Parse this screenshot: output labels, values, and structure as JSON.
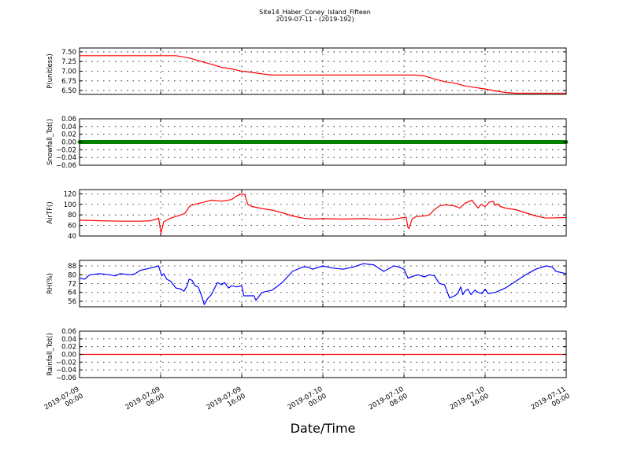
{
  "chart_data": {
    "type": "line",
    "title": "Site14_Haber_Coney_Island_Fifteen",
    "subtitle": "2019-07-11 - (2019-192)",
    "xlabel": "Date/Time",
    "x_ticks": [
      [
        "2019-07-09",
        "00:00"
      ],
      [
        "2019-07-09",
        "08:00"
      ],
      [
        "2019-07-09",
        "16:00"
      ],
      [
        "2019-07-10",
        "00:00"
      ],
      [
        "2019-07-10",
        "08:00"
      ],
      [
        "2019-07-10",
        "16:00"
      ],
      [
        "2019-07-11",
        "00:00"
      ]
    ],
    "x_range_hours": [
      0,
      48
    ],
    "grid": true,
    "panels": [
      {
        "ylabel": "P(unitless)",
        "ylim": [
          6.4,
          7.6
        ],
        "yticks": [
          6.5,
          6.75,
          7.0,
          7.25,
          7.5
        ],
        "ytick_labels": [
          "6.50",
          "6.75",
          "7.00",
          "7.25",
          "7.50"
        ],
        "color": "#ff0000",
        "style": "line",
        "points": [
          [
            0,
            7.4
          ],
          [
            9.5,
            7.4
          ],
          [
            10,
            7.38
          ],
          [
            11,
            7.33
          ],
          [
            12,
            7.25
          ],
          [
            13,
            7.18
          ],
          [
            14,
            7.1
          ],
          [
            15,
            7.06
          ],
          [
            16,
            7.0
          ],
          [
            17,
            6.97
          ],
          [
            18,
            6.93
          ],
          [
            19,
            6.9
          ],
          [
            24,
            6.9
          ],
          [
            33,
            6.9
          ],
          [
            34,
            6.88
          ],
          [
            35,
            6.8
          ],
          [
            36,
            6.73
          ],
          [
            37,
            6.69
          ],
          [
            38,
            6.62
          ],
          [
            39,
            6.58
          ],
          [
            40,
            6.54
          ],
          [
            41,
            6.49
          ],
          [
            42,
            6.45
          ],
          [
            43,
            6.43
          ],
          [
            48,
            6.43
          ]
        ]
      },
      {
        "ylabel": "Snowfall_Tot()",
        "ylim": [
          -0.06,
          0.06
        ],
        "yticks": [
          -0.06,
          -0.04,
          -0.02,
          0.0,
          0.02,
          0.04,
          0.06
        ],
        "ytick_labels": [
          "−0.06",
          "−0.04",
          "−0.02",
          "0.00",
          "0.02",
          "0.04",
          "0.06"
        ],
        "color": "#007f00",
        "style": "markers",
        "points": [
          [
            0,
            0
          ],
          [
            48,
            0
          ]
        ]
      },
      {
        "ylabel": "AirTF()",
        "ylim": [
          40,
          128
        ],
        "yticks": [
          40,
          60,
          80,
          100,
          120
        ],
        "ytick_labels": [
          "40",
          "60",
          "80",
          "100",
          "120"
        ],
        "color": "#ff0000",
        "style": "line",
        "points": [
          [
            0,
            70
          ],
          [
            2,
            69
          ],
          [
            4,
            68
          ],
          [
            6,
            68
          ],
          [
            7,
            69
          ],
          [
            7.6,
            72
          ],
          [
            7.8,
            74
          ],
          [
            7.95,
            55
          ],
          [
            8.05,
            46
          ],
          [
            8.3,
            67
          ],
          [
            8.6,
            70
          ],
          [
            9,
            74
          ],
          [
            10,
            80
          ],
          [
            10.4,
            83
          ],
          [
            10.8,
            95
          ],
          [
            11,
            98
          ],
          [
            12,
            103
          ],
          [
            13,
            108
          ],
          [
            14,
            106
          ],
          [
            15,
            109
          ],
          [
            15.5,
            116
          ],
          [
            16,
            120
          ],
          [
            16.3,
            118
          ],
          [
            16.6,
            100
          ],
          [
            17,
            96
          ],
          [
            18,
            92
          ],
          [
            19,
            89
          ],
          [
            20,
            84
          ],
          [
            21,
            78
          ],
          [
            22,
            74
          ],
          [
            23,
            72
          ],
          [
            24,
            73
          ],
          [
            26,
            72
          ],
          [
            28,
            73
          ],
          [
            30,
            71
          ],
          [
            31,
            72
          ],
          [
            32,
            75
          ],
          [
            32.2,
            76
          ],
          [
            32.4,
            56
          ],
          [
            32.5,
            54
          ],
          [
            32.8,
            72
          ],
          [
            33.2,
            77
          ],
          [
            34,
            78
          ],
          [
            34.5,
            80
          ],
          [
            35,
            90
          ],
          [
            35.5,
            97
          ],
          [
            36,
            99
          ],
          [
            37,
            97
          ],
          [
            37.5,
            93
          ],
          [
            38,
            102
          ],
          [
            38.7,
            108
          ],
          [
            39,
            100
          ],
          [
            39.3,
            93
          ],
          [
            39.6,
            100
          ],
          [
            40,
            96
          ],
          [
            40.4,
            104
          ],
          [
            40.8,
            106
          ],
          [
            41,
            98
          ],
          [
            41.2,
            101
          ],
          [
            41.5,
            96
          ],
          [
            42,
            93
          ],
          [
            43,
            90
          ],
          [
            44,
            84
          ],
          [
            45,
            78
          ],
          [
            46,
            74
          ],
          [
            48,
            75
          ]
        ]
      },
      {
        "ylabel": "RH(%)",
        "ylim": [
          51,
          93
        ],
        "yticks": [
          56,
          64,
          72,
          80,
          88
        ],
        "ytick_labels": [
          "56",
          "64",
          "72",
          "80",
          "88"
        ],
        "color": "#0000ff",
        "style": "line",
        "points": [
          [
            0,
            77
          ],
          [
            0.5,
            76
          ],
          [
            1,
            80
          ],
          [
            2,
            81
          ],
          [
            3,
            80
          ],
          [
            3.5,
            79
          ],
          [
            4,
            81
          ],
          [
            5,
            80
          ],
          [
            5.5,
            81
          ],
          [
            6,
            84
          ],
          [
            7,
            86
          ],
          [
            7.8,
            88
          ],
          [
            8.1,
            79
          ],
          [
            8.3,
            81
          ],
          [
            8.6,
            76
          ],
          [
            9,
            74
          ],
          [
            9.5,
            68
          ],
          [
            10,
            67
          ],
          [
            10.3,
            65
          ],
          [
            10.6,
            70
          ],
          [
            10.8,
            76
          ],
          [
            11.1,
            75
          ],
          [
            11.4,
            70
          ],
          [
            11.7,
            69
          ],
          [
            12,
            62
          ],
          [
            12.3,
            53
          ],
          [
            12.6,
            58
          ],
          [
            13,
            62
          ],
          [
            13.6,
            73
          ],
          [
            14,
            71
          ],
          [
            14.3,
            73
          ],
          [
            14.7,
            68
          ],
          [
            15,
            70
          ],
          [
            15.5,
            69
          ],
          [
            16,
            70
          ],
          [
            16.2,
            61
          ],
          [
            16.6,
            61
          ],
          [
            17.2,
            61
          ],
          [
            17.4,
            57
          ],
          [
            18,
            64
          ],
          [
            19,
            66
          ],
          [
            20,
            73
          ],
          [
            20.5,
            78
          ],
          [
            21,
            83
          ],
          [
            22,
            87
          ],
          [
            22.5,
            87
          ],
          [
            23,
            85
          ],
          [
            24,
            88
          ],
          [
            25,
            86
          ],
          [
            26,
            85
          ],
          [
            27,
            87
          ],
          [
            28,
            90
          ],
          [
            29,
            89
          ],
          [
            30,
            83
          ],
          [
            31,
            88
          ],
          [
            31.5,
            87
          ],
          [
            32,
            85
          ],
          [
            32.4,
            77
          ],
          [
            33,
            79
          ],
          [
            33.4,
            80
          ],
          [
            34,
            78
          ],
          [
            34.5,
            80
          ],
          [
            35,
            79
          ],
          [
            35.5,
            72
          ],
          [
            36,
            71
          ],
          [
            36.5,
            59
          ],
          [
            37,
            61
          ],
          [
            37.3,
            63
          ],
          [
            37.6,
            69
          ],
          [
            37.8,
            62
          ],
          [
            38,
            65
          ],
          [
            38.3,
            67
          ],
          [
            38.6,
            62
          ],
          [
            39,
            66
          ],
          [
            39.3,
            64
          ],
          [
            39.7,
            63
          ],
          [
            40,
            67
          ],
          [
            40.3,
            63
          ],
          [
            41,
            64
          ],
          [
            42,
            68
          ],
          [
            43,
            74
          ],
          [
            44,
            80
          ],
          [
            45,
            85
          ],
          [
            46,
            88
          ],
          [
            46.6,
            87
          ],
          [
            47,
            83
          ],
          [
            48,
            81
          ]
        ]
      },
      {
        "ylabel": "Rainfall_Tot()",
        "ylim": [
          -0.06,
          0.06
        ],
        "yticks": [
          -0.06,
          -0.04,
          -0.02,
          0.0,
          0.02,
          0.04,
          0.06
        ],
        "ytick_labels": [
          "−0.06",
          "−0.04",
          "−0.02",
          "0.00",
          "0.02",
          "0.04",
          "0.06"
        ],
        "color": "#ff0000",
        "style": "line",
        "points": [
          [
            0,
            0
          ],
          [
            48,
            0
          ]
        ]
      }
    ]
  }
}
